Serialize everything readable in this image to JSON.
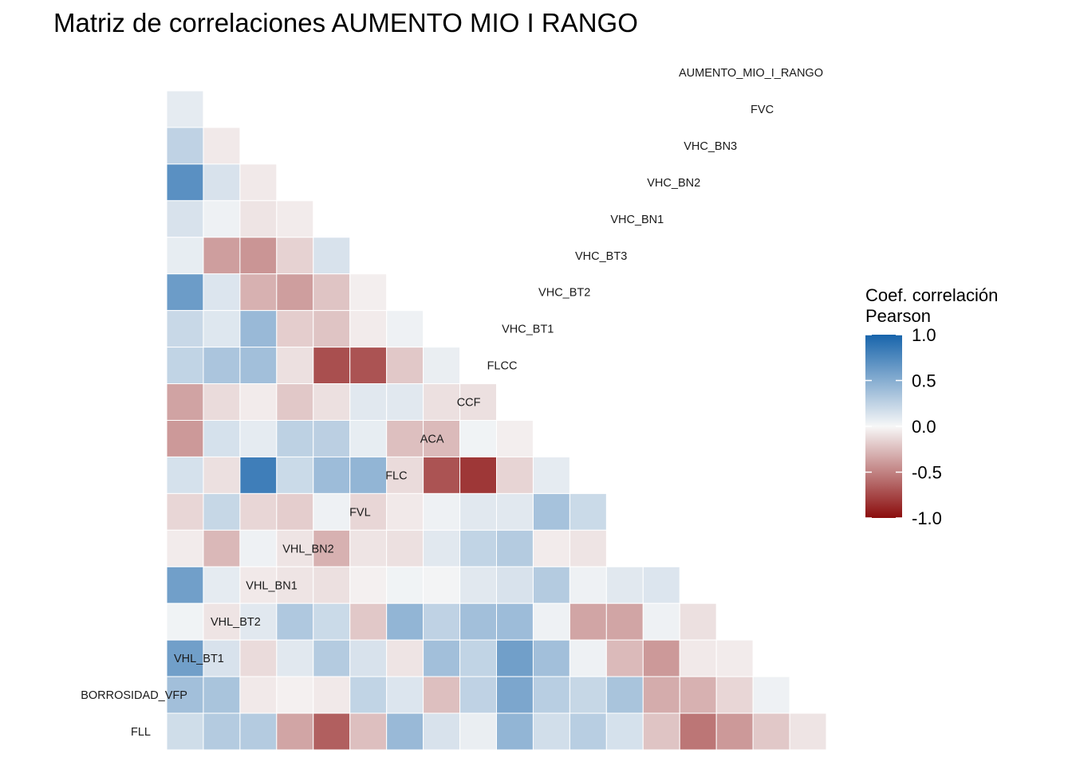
{
  "chart_data": {
    "type": "heatmap",
    "title": "Matriz de correlaciones AUMENTO MIO I RANGO",
    "variables": [
      "FLL",
      "BORROSIDAD_VFP",
      "VHL_BT1",
      "VHL_BT2",
      "VHL_BN1",
      "VHL_BN2",
      "FVL",
      "FLC",
      "ACA",
      "CCF",
      "FLCC",
      "VHC_BT1",
      "VHC_BT2",
      "VHC_BT3",
      "VHC_BN1",
      "VHC_BN2",
      "VHC_BN3",
      "FVC",
      "AUMENTO_MIO_I_RANGO"
    ],
    "rows": [
      {
        "variable": "FVC",
        "values": [
          0.08
        ]
      },
      {
        "variable": "VHC_BN3",
        "values": [
          0.25,
          -0.06
        ]
      },
      {
        "variable": "VHC_BN2",
        "values": [
          0.7,
          0.14,
          -0.06
        ]
      },
      {
        "variable": "VHC_BN1",
        "values": [
          0.14,
          0.04,
          -0.08,
          -0.05
        ]
      },
      {
        "variable": "VHC_BT3",
        "values": [
          0.07,
          -0.38,
          -0.42,
          -0.16,
          0.14
        ]
      },
      {
        "variable": "VHC_BT2",
        "values": [
          0.62,
          0.12,
          -0.3,
          -0.38,
          -0.22,
          -0.04
        ]
      },
      {
        "variable": "VHC_BT1",
        "values": [
          0.21,
          0.11,
          0.42,
          -0.18,
          -0.22,
          -0.05,
          0.04
        ]
      },
      {
        "variable": "FLCC",
        "values": [
          0.24,
          0.34,
          0.38,
          -0.1,
          -0.72,
          -0.7,
          -0.2,
          0.06
        ]
      },
      {
        "variable": "CCF",
        "values": [
          -0.36,
          -0.12,
          -0.05,
          -0.2,
          -0.1,
          0.1,
          0.1,
          -0.1,
          -0.1
        ]
      },
      {
        "variable": "ACA",
        "values": [
          -0.4,
          0.15,
          0.08,
          0.26,
          0.27,
          0.07,
          -0.24,
          -0.26,
          0.03,
          -0.04
        ]
      },
      {
        "variable": "FLC",
        "values": [
          0.15,
          -0.1,
          0.82,
          0.2,
          0.4,
          0.45,
          -0.12,
          -0.7,
          -0.82,
          -0.15,
          0.08
        ]
      },
      {
        "variable": "FVL",
        "values": [
          -0.14,
          0.22,
          -0.14,
          -0.18,
          0.04,
          -0.14,
          -0.06,
          0.04,
          0.1,
          0.1,
          0.36,
          0.2
        ]
      },
      {
        "variable": "VHL_BN2",
        "values": [
          -0.05,
          -0.27,
          0.04,
          -0.08,
          -0.3,
          -0.08,
          -0.1,
          0.1,
          0.24,
          0.3,
          -0.05,
          -0.08
        ]
      },
      {
        "variable": "VHL_BN1",
        "values": [
          0.6,
          0.08,
          -0.06,
          -0.08,
          -0.1,
          -0.03,
          0.03,
          0.02,
          0.1,
          0.14,
          0.3,
          0.04,
          0.1,
          0.12
        ]
      },
      {
        "variable": "VHL_BT2",
        "values": [
          0.03,
          -0.08,
          0.1,
          0.32,
          0.2,
          -0.2,
          0.45,
          0.25,
          0.38,
          0.4,
          0.04,
          -0.35,
          -0.35,
          0.04,
          -0.1
        ]
      },
      {
        "variable": "VHL_BT1",
        "values": [
          0.6,
          0.14,
          -0.12,
          0.1,
          0.3,
          0.14,
          -0.08,
          0.38,
          0.24,
          0.6,
          0.38,
          0.04,
          -0.26,
          -0.4,
          -0.06,
          -0.05
        ]
      },
      {
        "variable": "BORROSIDAD_VFP",
        "values": [
          0.38,
          0.35,
          -0.06,
          -0.03,
          -0.06,
          0.24,
          0.12,
          -0.24,
          0.25,
          0.55,
          0.28,
          0.22,
          0.35,
          -0.32,
          -0.3,
          -0.14,
          0.04
        ]
      },
      {
        "variable": "FLL",
        "values": [
          0.18,
          0.3,
          0.3,
          -0.35,
          -0.65,
          -0.24,
          0.42,
          0.14,
          0.06,
          0.45,
          0.17,
          0.28,
          0.15,
          -0.22,
          -0.55,
          -0.4,
          -0.2,
          -0.08
        ]
      }
    ],
    "legend": {
      "title_line1": "Coef. correlación",
      "title_line2": "Pearson",
      "ticks": [
        "1.0",
        "0.5",
        "0.0",
        "-0.5",
        "-1.0"
      ],
      "tick_values": [
        1,
        0.5,
        0,
        -0.5,
        -1
      ],
      "range": [
        -1,
        1
      ],
      "placement": "right"
    },
    "colors": {
      "low": "#8b0d0d",
      "mid": "#f7f7f7",
      "high": "#1764ab"
    },
    "grid": false
  }
}
